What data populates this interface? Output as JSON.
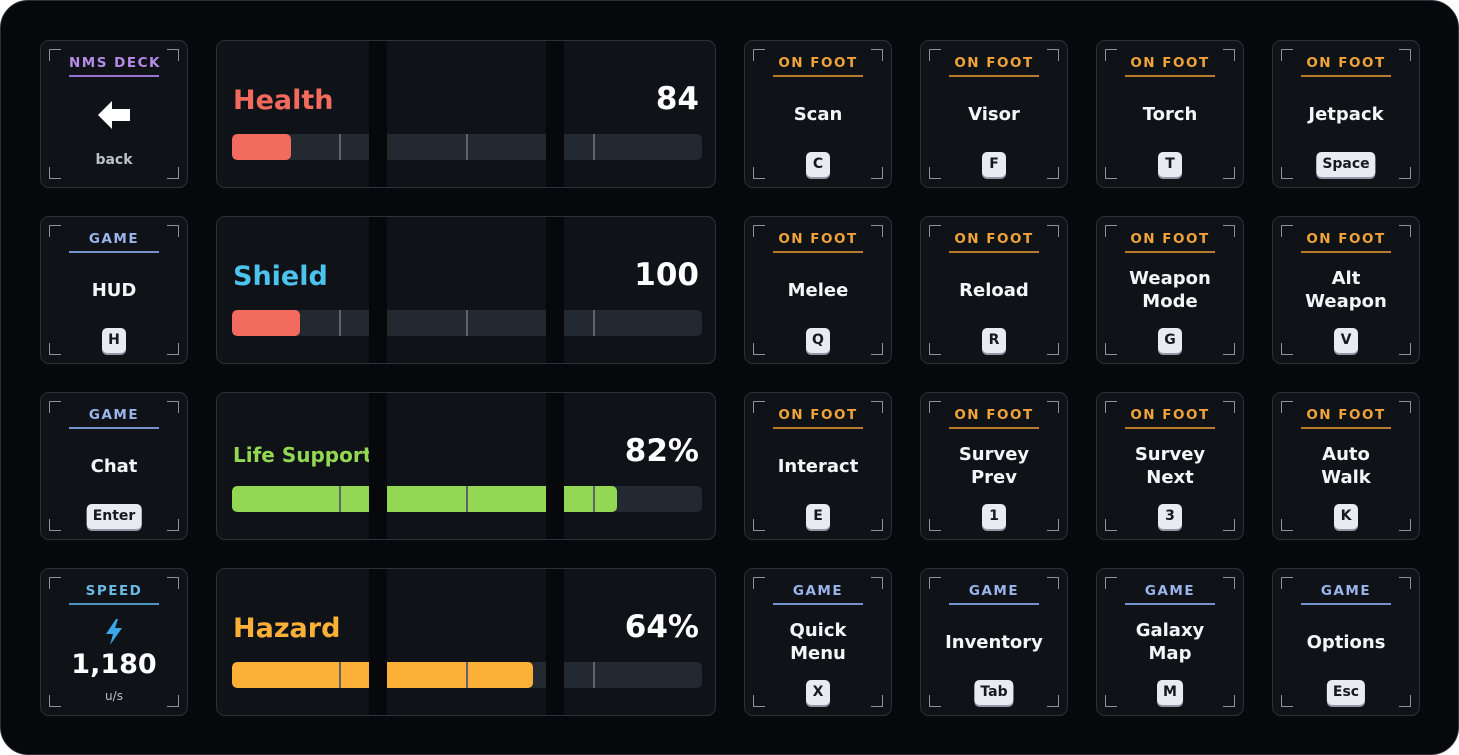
{
  "deck": {
    "back_key": {
      "category": "NMS DECK",
      "label": "back",
      "icon": "arrow-left-icon"
    },
    "hud_key": {
      "category": "GAME",
      "label": "HUD",
      "keycap": "H"
    },
    "chat_key": {
      "category": "GAME",
      "label": "Chat",
      "keycap": "Enter"
    },
    "speed_key": {
      "category": "SPEED",
      "icon": "lightning-bolt-icon",
      "value": "1,180",
      "unit": "u/s"
    }
  },
  "stats": [
    {
      "name": "Health",
      "value": "84",
      "fill": 0.125,
      "color": "#f36b5e"
    },
    {
      "name": "Shield",
      "value": "100",
      "fill": 0.145,
      "color": "#f36b5e"
    },
    {
      "name": "Life Support",
      "value": "82%",
      "fill": 0.82,
      "color": "#93d852"
    },
    {
      "name": "Hazard",
      "value": "64%",
      "fill": 0.64,
      "color": "#fdb037"
    }
  ],
  "actions": [
    [
      {
        "category": "ON FOOT",
        "label": "Scan",
        "keycap": "C"
      },
      {
        "category": "ON FOOT",
        "label": "Visor",
        "keycap": "F"
      },
      {
        "category": "ON FOOT",
        "label": "Torch",
        "keycap": "T"
      },
      {
        "category": "ON FOOT",
        "label": "Jetpack",
        "keycap": "Space"
      }
    ],
    [
      {
        "category": "ON FOOT",
        "label": "Melee",
        "keycap": "Q"
      },
      {
        "category": "ON FOOT",
        "label": "Reload",
        "keycap": "R"
      },
      {
        "category": "ON FOOT",
        "label": "Weapon\nMode",
        "keycap": "G"
      },
      {
        "category": "ON FOOT",
        "label": "Alt\nWeapon",
        "keycap": "V"
      }
    ],
    [
      {
        "category": "ON FOOT",
        "label": "Interact",
        "keycap": "E"
      },
      {
        "category": "ON FOOT",
        "label": "Survey\nPrev",
        "keycap": "1"
      },
      {
        "category": "ON FOOT",
        "label": "Survey\nNext",
        "keycap": "3"
      },
      {
        "category": "ON FOOT",
        "label": "Auto\nWalk",
        "keycap": "K"
      }
    ],
    [
      {
        "category": "GAME",
        "label": "Quick\nMenu",
        "keycap": "X"
      },
      {
        "category": "GAME",
        "label": "Inventory",
        "keycap": "Tab"
      },
      {
        "category": "GAME",
        "label": "Galaxy\nMap",
        "keycap": "M"
      },
      {
        "category": "GAME",
        "label": "Options",
        "keycap": "Esc"
      }
    ]
  ],
  "colors": {
    "background": "#06080b",
    "key": "#0f1318",
    "on_foot": "#f2a33a",
    "game": "#9ab5ec",
    "nms_deck": "#b58be8",
    "speed": "#6cbbe6"
  }
}
